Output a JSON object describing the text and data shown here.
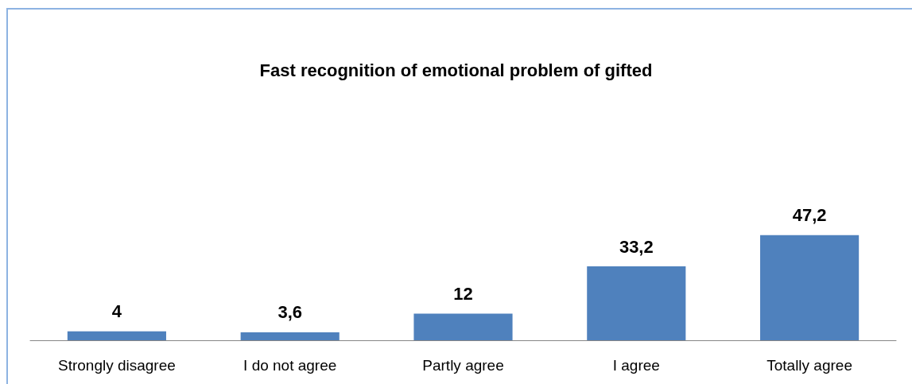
{
  "chart_data": {
    "type": "bar",
    "title": "Fast recognition of emotional problem of gifted",
    "categories": [
      "Strongly disagree",
      "I do not agree",
      "Partly agree",
      "I agree",
      "Totally agree"
    ],
    "values": [
      4,
      3.6,
      12,
      33.2,
      47.2
    ],
    "color": "#4f81bd",
    "value_labels": [
      "4",
      "3,6",
      "12",
      "33,2",
      "47,2"
    ]
  }
}
